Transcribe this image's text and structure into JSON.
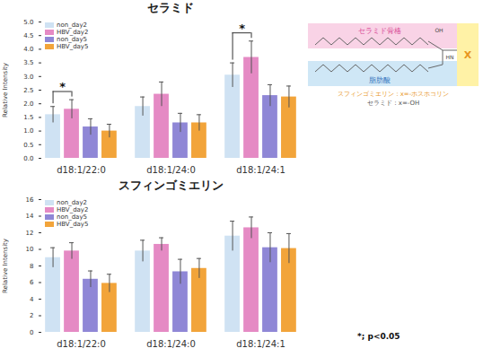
{
  "chart_data": [
    {
      "type": "bar",
      "title": "セラミド",
      "y_label": "Relative Intensity",
      "categories": [
        "d18:1/22:0",
        "d18:1/24:0",
        "d18:1/24:1"
      ],
      "series": [
        {
          "name": "non_day2",
          "color": "#cfe2f3",
          "values": [
            1.6,
            1.9,
            3.05
          ],
          "errors": [
            0.3,
            0.35,
            0.45
          ]
        },
        {
          "name": "HBV_day2",
          "color": "#e58ac4",
          "values": [
            1.8,
            2.35,
            3.7
          ],
          "errors": [
            0.35,
            0.45,
            0.6
          ]
        },
        {
          "name": "non_day5",
          "color": "#8f87d6",
          "values": [
            1.15,
            1.3,
            2.3
          ],
          "errors": [
            0.3,
            0.35,
            0.4
          ]
        },
        {
          "name": "HBV_day5",
          "color": "#f2a43a",
          "values": [
            1.0,
            1.3,
            2.25
          ],
          "errors": [
            0.25,
            0.3,
            0.4
          ]
        }
      ],
      "annotations": [
        {
          "category": "d18:1/22:0",
          "series": [
            "non_day2",
            "HBV_day2"
          ],
          "text": "*"
        },
        {
          "category": "d18:1/24:1",
          "series": [
            "non_day2",
            "HBV_day2"
          ],
          "text": "*"
        }
      ],
      "ylim": [
        0,
        5
      ],
      "yticks": [
        {
          "value": 0,
          "label": "0.0"
        },
        0.5,
        {
          "value": 1,
          "label": "1.0"
        },
        1.5,
        {
          "value": 2,
          "label": "2.0"
        },
        2.5,
        {
          "value": 3,
          "label": "3.0"
        },
        3.5,
        {
          "value": 4,
          "label": "4.0"
        },
        4.5,
        {
          "value": 5,
          "label": "5.0"
        }
      ],
      "legend": "top-left",
      "grid": false
    },
    {
      "type": "bar",
      "title": "スフィンゴミエリン",
      "y_label": "Relative Intensity",
      "categories": [
        "d18:1/22:0",
        "d18:1/24:0",
        "d18:1/24:1"
      ],
      "series": [
        {
          "name": "non_day2",
          "color": "#cfe2f3",
          "values": [
            9.0,
            9.8,
            11.6
          ],
          "errors": [
            1.2,
            1.3,
            1.8
          ]
        },
        {
          "name": "HBV_day2",
          "color": "#e58ac4",
          "values": [
            9.8,
            10.6,
            12.6
          ],
          "errors": [
            1.0,
            0.8,
            1.3
          ]
        },
        {
          "name": "non_day5",
          "color": "#8f87d6",
          "values": [
            6.4,
            7.3,
            10.2
          ],
          "errors": [
            1.0,
            1.5,
            1.8
          ]
        },
        {
          "name": "HBV_day5",
          "color": "#f2a43a",
          "values": [
            5.9,
            7.7,
            10.1
          ],
          "errors": [
            1.1,
            1.2,
            1.8
          ]
        }
      ],
      "annotations": [],
      "ylim": [
        0,
        16
      ],
      "yticks": [
        0,
        2,
        4,
        6,
        8,
        10,
        12,
        14,
        16
      ],
      "legend": "top-left",
      "grid": false
    }
  ],
  "diagram": {
    "backbone": "セラミド骨格",
    "fatty_acid": "脂肪酸",
    "head": "X",
    "groups": [
      "OH",
      "HN"
    ],
    "notes": [
      "スフィンゴミエリン：x=-ホスホコリン",
      "セラミド：x=-OH"
    ]
  },
  "note": "*; p<0.05"
}
